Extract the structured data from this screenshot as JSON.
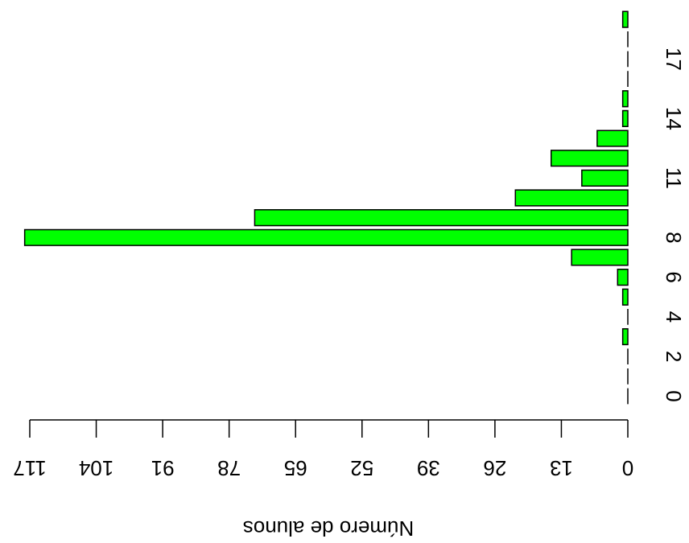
{
  "chart_data": {
    "type": "bar",
    "orientation": "horizontal",
    "x_label": "Número de alunos",
    "categories": [
      "0",
      null,
      "2",
      null,
      "4",
      null,
      "6",
      null,
      "8",
      null,
      null,
      "11",
      null,
      null,
      "14",
      null,
      null,
      "17",
      null,
      null
    ],
    "values": [
      0,
      0,
      0,
      1,
      0,
      1,
      2,
      11,
      118,
      73,
      22,
      9,
      15,
      6,
      1,
      1,
      0,
      0,
      0,
      1
    ],
    "color": "#00ff00",
    "xlim": [
      0,
      117
    ],
    "xticks": [
      0,
      13,
      26,
      39,
      52,
      65,
      78,
      91,
      104,
      117
    ]
  }
}
